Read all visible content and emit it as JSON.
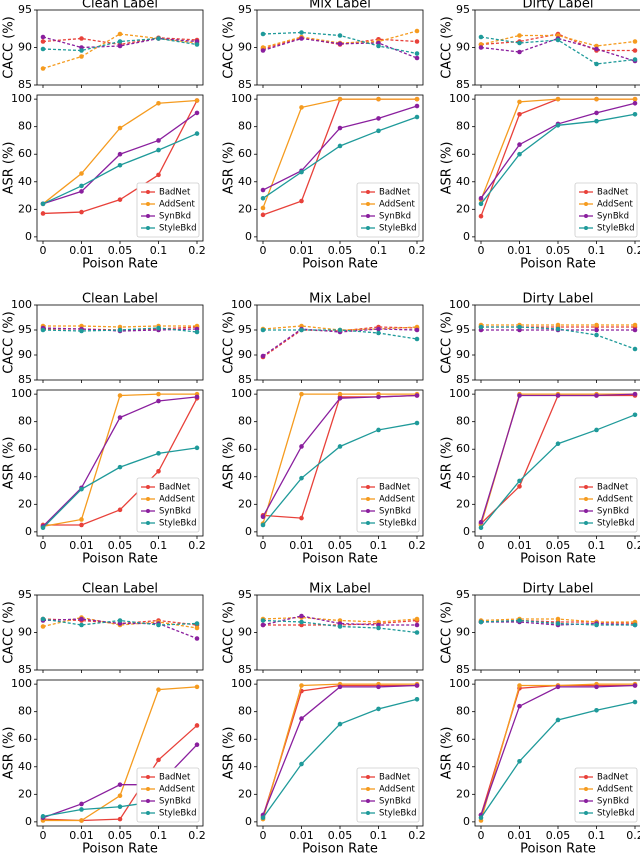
{
  "chart_data": [
    {
      "type": "line",
      "title": "Clean Label",
      "ylabel": "CACC (%)",
      "ylim": [
        85,
        95
      ],
      "yticks": [
        85,
        90,
        95
      ],
      "line_style": "dashed",
      "series": [
        {
          "color": "#e8413a",
          "values": [
            90.8,
            91.2,
            90.4,
            91.3,
            91.0
          ]
        },
        {
          "color": "#f59b1f",
          "values": [
            87.2,
            88.8,
            91.8,
            91.2,
            90.6
          ]
        },
        {
          "color": "#8a1f9e",
          "values": [
            91.4,
            90.0,
            90.2,
            91.2,
            90.8
          ]
        },
        {
          "color": "#1f9a9a",
          "values": [
            89.8,
            89.6,
            90.8,
            91.2,
            90.4
          ]
        }
      ]
    },
    {
      "type": "line",
      "ylabel": "ASR (%)",
      "xlabel": "Poison Rate",
      "categories": [
        "0",
        "0.01",
        "0.05",
        "0.1",
        "0.2"
      ],
      "ylim": [
        -3,
        103
      ],
      "yticks": [
        0,
        20,
        40,
        60,
        80,
        100
      ],
      "line_style": "solid",
      "legend": "lower right",
      "series": [
        {
          "name": "BadNet",
          "color": "#e8413a",
          "values": [
            17,
            18,
            27,
            45,
            99
          ]
        },
        {
          "name": "AddSent",
          "color": "#f59b1f",
          "values": [
            24,
            46,
            79,
            97,
            99
          ]
        },
        {
          "name": "SynBkd",
          "color": "#8a1f9e",
          "values": [
            24,
            33,
            60,
            70,
            90
          ]
        },
        {
          "name": "StyleBkd",
          "color": "#1f9a9a",
          "values": [
            24,
            37,
            52,
            63,
            75
          ]
        }
      ]
    },
    {
      "type": "line",
      "title": "Mix Label",
      "ylabel": "CACC (%)",
      "ylim": [
        85,
        95
      ],
      "yticks": [
        85,
        90,
        95
      ],
      "line_style": "dashed",
      "series": [
        {
          "color": "#e8413a",
          "values": [
            89.8,
            91.3,
            90.4,
            91.1,
            90.8
          ]
        },
        {
          "color": "#f59b1f",
          "values": [
            90.0,
            91.4,
            90.6,
            90.8,
            92.2
          ]
        },
        {
          "color": "#8a1f9e",
          "values": [
            89.6,
            91.2,
            90.5,
            90.6,
            88.6
          ]
        },
        {
          "color": "#1f9a9a",
          "values": [
            91.8,
            92.0,
            91.6,
            90.2,
            89.2
          ]
        }
      ]
    },
    {
      "type": "line",
      "ylabel": "ASR (%)",
      "xlabel": "Poison Rate",
      "categories": [
        "0",
        "0.01",
        "0.05",
        "0.1",
        "0.2"
      ],
      "ylim": [
        -3,
        103
      ],
      "yticks": [
        0,
        20,
        40,
        60,
        80,
        100
      ],
      "line_style": "solid",
      "legend": "lower right",
      "series": [
        {
          "name": "BadNet",
          "color": "#e8413a",
          "values": [
            16,
            26,
            100,
            100,
            100
          ]
        },
        {
          "name": "AddSent",
          "color": "#f59b1f",
          "values": [
            21,
            94,
            100,
            100,
            100
          ]
        },
        {
          "name": "SynBkd",
          "color": "#8a1f9e",
          "values": [
            34,
            48,
            79,
            86,
            95
          ]
        },
        {
          "name": "StyleBkd",
          "color": "#1f9a9a",
          "values": [
            28,
            47,
            66,
            77,
            87
          ]
        }
      ]
    },
    {
      "type": "line",
      "title": "Dirty Label",
      "ylabel": "CACC (%)",
      "ylim": [
        85,
        95
      ],
      "yticks": [
        85,
        90,
        95
      ],
      "line_style": "dashed",
      "series": [
        {
          "color": "#e8413a",
          "values": [
            90.4,
            90.8,
            91.8,
            89.6,
            89.6
          ]
        },
        {
          "color": "#f59b1f",
          "values": [
            90.4,
            91.6,
            91.6,
            90.2,
            90.8
          ]
        },
        {
          "color": "#8a1f9e",
          "values": [
            90.0,
            89.4,
            91.2,
            89.8,
            88.2
          ]
        },
        {
          "color": "#1f9a9a",
          "values": [
            91.4,
            90.6,
            91.0,
            87.8,
            88.4
          ]
        }
      ]
    },
    {
      "type": "line",
      "ylabel": "ASR (%)",
      "xlabel": "Poison Rate",
      "categories": [
        "0",
        "0.01",
        "0.05",
        "0.1",
        "0.2"
      ],
      "ylim": [
        -3,
        103
      ],
      "yticks": [
        0,
        20,
        40,
        60,
        80,
        100
      ],
      "line_style": "solid",
      "legend": "lower right",
      "series": [
        {
          "name": "BadNet",
          "color": "#e8413a",
          "values": [
            15,
            89,
            100,
            100,
            100
          ]
        },
        {
          "name": "AddSent",
          "color": "#f59b1f",
          "values": [
            27,
            98,
            100,
            100,
            100
          ]
        },
        {
          "name": "SynBkd",
          "color": "#8a1f9e",
          "values": [
            28,
            67,
            82,
            90,
            97
          ]
        },
        {
          "name": "StyleBkd",
          "color": "#1f9a9a",
          "values": [
            24,
            60,
            81,
            84,
            89
          ]
        }
      ]
    },
    {
      "type": "line",
      "title": "Clean Label",
      "ylabel": "CACC (%)",
      "ylim": [
        85,
        100
      ],
      "yticks": [
        85,
        90,
        95,
        100
      ],
      "line_style": "dashed",
      "series": [
        {
          "color": "#e8413a",
          "values": [
            95.2,
            95.2,
            95.0,
            95.2,
            95.6
          ]
        },
        {
          "color": "#f59b1f",
          "values": [
            95.8,
            95.8,
            95.6,
            95.8,
            95.8
          ]
        },
        {
          "color": "#8a1f9e",
          "values": [
            95.4,
            95.2,
            94.8,
            95.0,
            95.2
          ]
        },
        {
          "color": "#1f9a9a",
          "values": [
            95.0,
            94.8,
            95.0,
            95.4,
            94.6
          ]
        }
      ]
    },
    {
      "type": "line",
      "ylabel": "ASR (%)",
      "xlabel": "Poison Rate",
      "categories": [
        "0",
        "0.01",
        "0.05",
        "0.1",
        "0.2"
      ],
      "ylim": [
        -3,
        103
      ],
      "yticks": [
        0,
        20,
        40,
        60,
        80,
        100
      ],
      "line_style": "solid",
      "legend": "lower right",
      "series": [
        {
          "name": "BadNet",
          "color": "#e8413a",
          "values": [
            5,
            5,
            16,
            44,
            97
          ]
        },
        {
          "name": "AddSent",
          "color": "#f59b1f",
          "values": [
            4,
            9,
            99,
            100,
            100
          ]
        },
        {
          "name": "SynBkd",
          "color": "#8a1f9e",
          "values": [
            4,
            32,
            83,
            95,
            98
          ]
        },
        {
          "name": "StyleBkd",
          "color": "#1f9a9a",
          "values": [
            3,
            31,
            47,
            57,
            61
          ]
        }
      ]
    },
    {
      "type": "line",
      "title": "Mix Label",
      "ylabel": "CACC (%)",
      "ylim": [
        85,
        100
      ],
      "yticks": [
        85,
        90,
        95,
        100
      ],
      "line_style": "dashed",
      "series": [
        {
          "color": "#e8413a",
          "values": [
            89.6,
            95.0,
            94.8,
            95.6,
            95.4
          ]
        },
        {
          "color": "#f59b1f",
          "values": [
            95.2,
            95.8,
            95.0,
            95.2,
            95.6
          ]
        },
        {
          "color": "#8a1f9e",
          "values": [
            89.8,
            95.2,
            94.6,
            95.2,
            95.0
          ]
        },
        {
          "color": "#1f9a9a",
          "values": [
            95.0,
            95.0,
            95.0,
            94.4,
            93.2
          ]
        }
      ]
    },
    {
      "type": "line",
      "ylabel": "ASR (%)",
      "xlabel": "Poison Rate",
      "categories": [
        "0",
        "0.01",
        "0.05",
        "0.1",
        "0.2"
      ],
      "ylim": [
        -3,
        103
      ],
      "yticks": [
        0,
        20,
        40,
        60,
        80,
        100
      ],
      "line_style": "solid",
      "legend": "lower right",
      "series": [
        {
          "name": "BadNet",
          "color": "#e8413a",
          "values": [
            12,
            10,
            98,
            98,
            99
          ]
        },
        {
          "name": "AddSent",
          "color": "#f59b1f",
          "values": [
            6,
            100,
            100,
            100,
            100
          ]
        },
        {
          "name": "SynBkd",
          "color": "#8a1f9e",
          "values": [
            11,
            62,
            97,
            98,
            99
          ]
        },
        {
          "name": "StyleBkd",
          "color": "#1f9a9a",
          "values": [
            5,
            39,
            62,
            74,
            79
          ]
        }
      ]
    },
    {
      "type": "line",
      "title": "Dirty Label",
      "ylabel": "CACC (%)",
      "ylim": [
        85,
        100
      ],
      "yticks": [
        85,
        90,
        95,
        100
      ],
      "line_style": "dashed",
      "series": [
        {
          "color": "#e8413a",
          "values": [
            95.6,
            95.6,
            95.6,
            95.6,
            95.6
          ]
        },
        {
          "color": "#f59b1f",
          "values": [
            96.0,
            96.0,
            96.0,
            96.0,
            96.0
          ]
        },
        {
          "color": "#8a1f9e",
          "values": [
            95.0,
            95.0,
            95.0,
            95.0,
            95.0
          ]
        },
        {
          "color": "#1f9a9a",
          "values": [
            95.6,
            95.6,
            95.2,
            94.0,
            91.2
          ]
        }
      ]
    },
    {
      "type": "line",
      "ylabel": "ASR (%)",
      "xlabel": "Poison Rate",
      "categories": [
        "0",
        "0.01",
        "0.05",
        "0.1",
        "0.2"
      ],
      "ylim": [
        -3,
        103
      ],
      "yticks": [
        0,
        20,
        40,
        60,
        80,
        100
      ],
      "line_style": "solid",
      "legend": "lower right",
      "series": [
        {
          "name": "BadNet",
          "color": "#e8413a",
          "values": [
            6,
            33,
            99,
            99,
            99
          ]
        },
        {
          "name": "AddSent",
          "color": "#f59b1f",
          "values": [
            5,
            100,
            100,
            100,
            100
          ]
        },
        {
          "name": "SynBkd",
          "color": "#8a1f9e",
          "values": [
            7,
            99,
            99,
            99,
            100
          ]
        },
        {
          "name": "StyleBkd",
          "color": "#1f9a9a",
          "values": [
            3,
            37,
            64,
            74,
            85
          ]
        }
      ]
    },
    {
      "type": "line",
      "title": "Clean Label",
      "ylabel": "CACC (%)",
      "ylim": [
        85,
        95
      ],
      "yticks": [
        85,
        90,
        95
      ],
      "line_style": "dashed",
      "series": [
        {
          "color": "#e8413a",
          "values": [
            91.8,
            91.6,
            91.2,
            91.6,
            91.0
          ]
        },
        {
          "color": "#f59b1f",
          "values": [
            90.8,
            92.0,
            91.0,
            91.4,
            90.6
          ]
        },
        {
          "color": "#8a1f9e",
          "values": [
            91.6,
            91.8,
            91.2,
            91.2,
            89.2
          ]
        },
        {
          "color": "#1f9a9a",
          "values": [
            91.8,
            91.0,
            91.6,
            91.0,
            91.2
          ]
        }
      ]
    },
    {
      "type": "line",
      "ylabel": "ASR (%)",
      "xlabel": "Poison Rate",
      "categories": [
        "0",
        "0.01",
        "0.05",
        "0.1",
        "0.2"
      ],
      "ylim": [
        -3,
        103
      ],
      "yticks": [
        0,
        20,
        40,
        60,
        80,
        100
      ],
      "line_style": "solid",
      "legend": "lower right",
      "series": [
        {
          "name": "BadNet",
          "color": "#e8413a",
          "values": [
            2,
            1,
            2,
            45,
            70
          ]
        },
        {
          "name": "AddSent",
          "color": "#f59b1f",
          "values": [
            1,
            1,
            19,
            96,
            98
          ]
        },
        {
          "name": "SynBkd",
          "color": "#8a1f9e",
          "values": [
            3,
            13,
            27,
            27,
            56
          ]
        },
        {
          "name": "StyleBkd",
          "color": "#1f9a9a",
          "values": [
            4,
            9,
            11,
            15,
            13
          ]
        }
      ]
    },
    {
      "type": "line",
      "title": "Mix Label",
      "ylabel": "CACC (%)",
      "ylim": [
        85,
        95
      ],
      "yticks": [
        85,
        90,
        95
      ],
      "line_style": "dashed",
      "series": [
        {
          "color": "#e8413a",
          "values": [
            91.0,
            91.0,
            91.0,
            91.2,
            91.6
          ]
        },
        {
          "color": "#f59b1f",
          "values": [
            91.8,
            92.0,
            91.6,
            91.4,
            91.8
          ]
        },
        {
          "color": "#8a1f9e",
          "values": [
            91.0,
            92.2,
            91.2,
            91.0,
            91.0
          ]
        },
        {
          "color": "#1f9a9a",
          "values": [
            91.6,
            91.4,
            90.8,
            90.6,
            90.0
          ]
        }
      ]
    },
    {
      "type": "line",
      "ylabel": "ASR (%)",
      "xlabel": "Poison Rate",
      "categories": [
        "0",
        "0.01",
        "0.05",
        "0.1",
        "0.2"
      ],
      "ylim": [
        -3,
        103
      ],
      "yticks": [
        0,
        20,
        40,
        60,
        80,
        100
      ],
      "line_style": "solid",
      "legend": "lower right",
      "series": [
        {
          "name": "BadNet",
          "color": "#e8413a",
          "values": [
            4,
            95,
            99,
            99,
            99
          ]
        },
        {
          "name": "AddSent",
          "color": "#f59b1f",
          "values": [
            2,
            99,
            100,
            100,
            100
          ]
        },
        {
          "name": "SynBkd",
          "color": "#8a1f9e",
          "values": [
            5,
            75,
            98,
            98,
            99
          ]
        },
        {
          "name": "StyleBkd",
          "color": "#1f9a9a",
          "values": [
            3,
            42,
            71,
            82,
            89
          ]
        }
      ]
    },
    {
      "type": "line",
      "title": "Dirty Label",
      "ylabel": "CACC (%)",
      "ylim": [
        85,
        95
      ],
      "yticks": [
        85,
        90,
        95
      ],
      "line_style": "dashed",
      "series": [
        {
          "color": "#e8413a",
          "values": [
            91.4,
            91.6,
            91.4,
            91.4,
            91.2
          ]
        },
        {
          "color": "#f59b1f",
          "values": [
            91.6,
            91.8,
            91.8,
            91.4,
            91.4
          ]
        },
        {
          "color": "#8a1f9e",
          "values": [
            91.4,
            91.4,
            91.0,
            91.2,
            91.0
          ]
        },
        {
          "color": "#1f9a9a",
          "values": [
            91.4,
            91.6,
            91.2,
            91.0,
            91.0
          ]
        }
      ]
    },
    {
      "type": "line",
      "ylabel": "ASR (%)",
      "xlabel": "Poison Rate",
      "categories": [
        "0",
        "0.01",
        "0.05",
        "0.1",
        "0.2"
      ],
      "ylim": [
        -3,
        103
      ],
      "yticks": [
        0,
        20,
        40,
        60,
        80,
        100
      ],
      "line_style": "solid",
      "legend": "lower right",
      "series": [
        {
          "name": "BadNet",
          "color": "#e8413a",
          "values": [
            5,
            97,
            99,
            99,
            99
          ]
        },
        {
          "name": "AddSent",
          "color": "#f59b1f",
          "values": [
            1,
            99,
            99,
            100,
            100
          ]
        },
        {
          "name": "SynBkd",
          "color": "#8a1f9e",
          "values": [
            5,
            84,
            98,
            98,
            99
          ]
        },
        {
          "name": "StyleBkd",
          "color": "#1f9a9a",
          "values": [
            3,
            44,
            74,
            81,
            87
          ]
        }
      ]
    }
  ]
}
